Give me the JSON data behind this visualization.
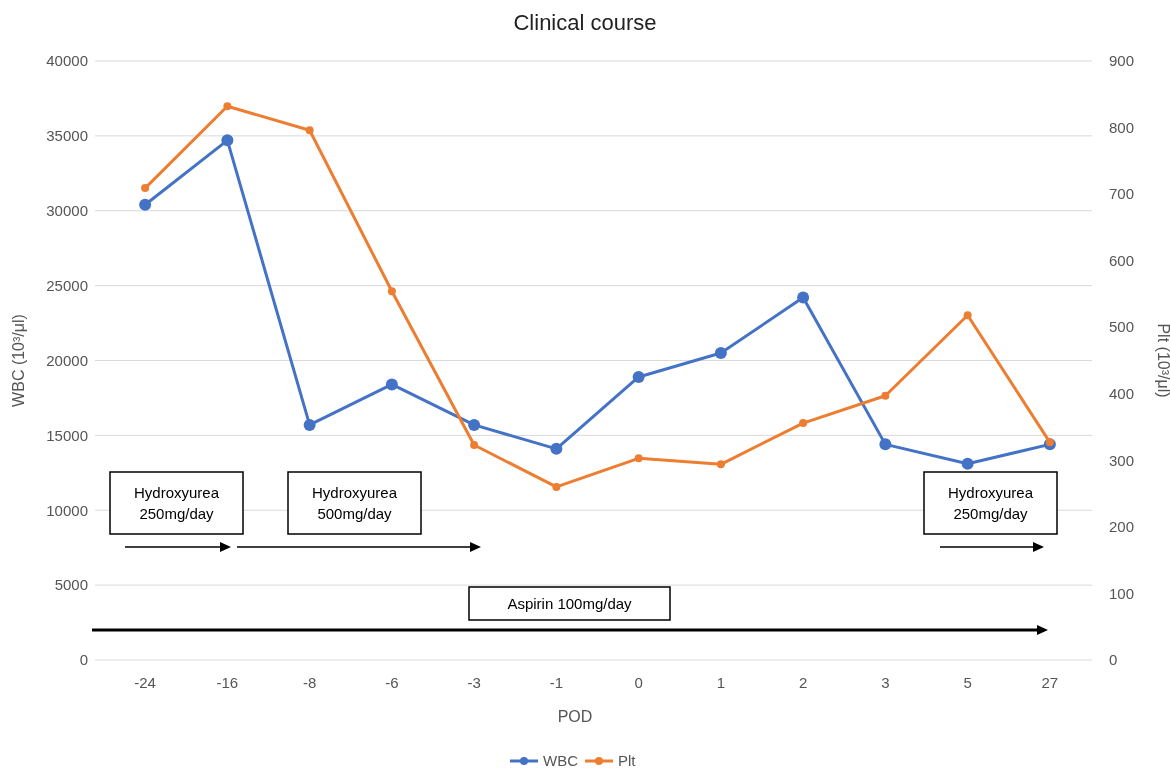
{
  "chart_data": {
    "type": "line",
    "title": "Clinical course",
    "xlabel": "POD",
    "ylabel": "WBC (10³/μl)",
    "y2label": "Plt (10³/μl)",
    "categories": [
      "-24",
      "-16",
      "-8",
      "-6",
      "-3",
      "-1",
      "0",
      "1",
      "2",
      "3",
      "5",
      "27"
    ],
    "series": [
      {
        "name": "WBC",
        "color": "#4472c4",
        "values": [
          30400,
          34700,
          15700,
          18400,
          15700,
          14100,
          18900,
          20500,
          24200,
          14400,
          13100,
          14400
        ]
      },
      {
        "name": "Plt",
        "color": "#ed7d31",
        "axis": "y2",
        "values": [
          709,
          832,
          796,
          554,
          323,
          260,
          303,
          294,
          356,
          397,
          518,
          327
        ]
      }
    ],
    "ylim": [
      0,
      40000
    ],
    "yticks": [
      0,
      5000,
      10000,
      15000,
      20000,
      25000,
      30000,
      35000,
      40000
    ],
    "y2lim": [
      0,
      900
    ],
    "y2ticks": [
      0,
      100,
      200,
      300,
      400,
      500,
      600,
      700,
      800,
      900
    ],
    "grid": "y",
    "legend": "bottom",
    "marker": "circle",
    "line_style": "solid",
    "annotations": [
      "Hydroxyurea 250mg/day",
      "Hydroxyurea 500mg/day",
      "Aspirin 100mg/day",
      "Hydroxyurea 250mg/day"
    ]
  }
}
